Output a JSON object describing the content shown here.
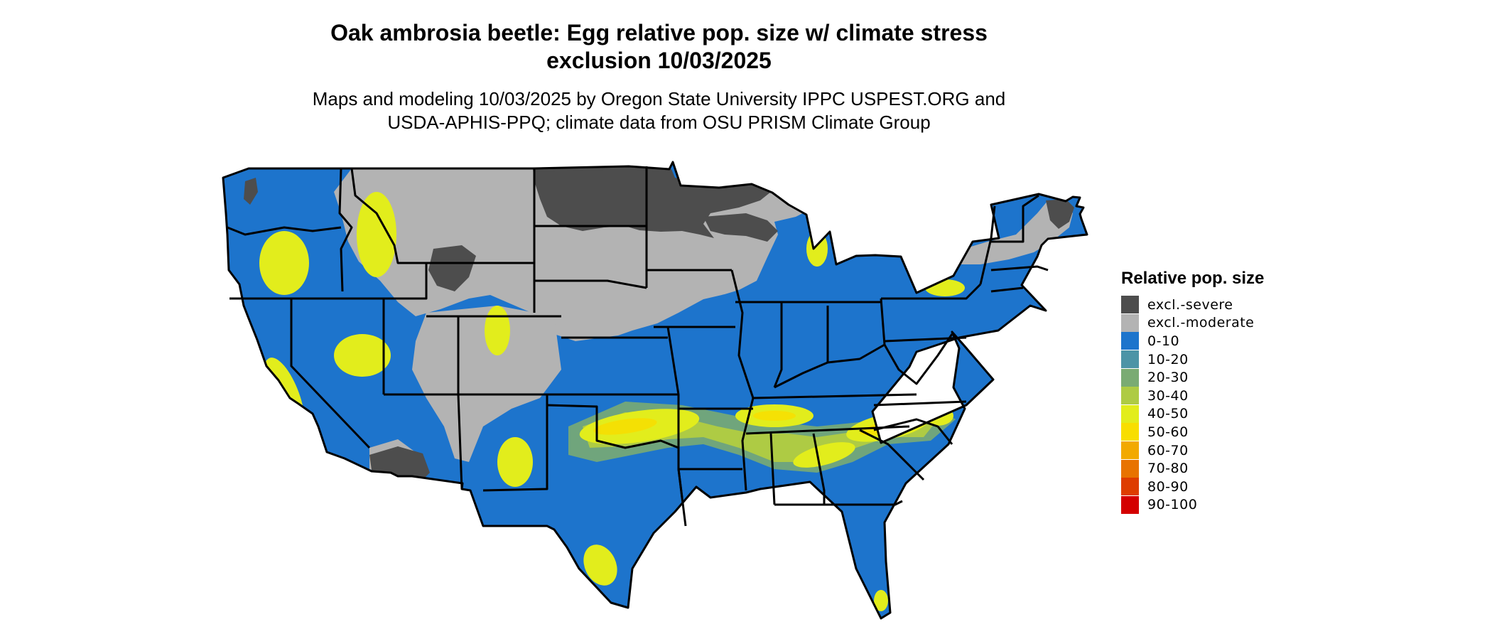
{
  "title": {
    "line1": "Oak ambrosia beetle: Egg relative pop. size w/ climate stress",
    "line2": "exclusion 10/03/2025"
  },
  "subtitle": {
    "line1": "Maps and modeling 10/03/2025 by Oregon State University IPPC USPEST.ORG and",
    "line2": "USDA-APHIS-PPQ; climate data from OSU PRISM Climate Group"
  },
  "legend": {
    "title": "Relative pop. size",
    "items": [
      {
        "label": "excl.-severe",
        "color": "#4d4d4d"
      },
      {
        "label": "excl.-moderate",
        "color": "#b3b3b3"
      },
      {
        "label": "0-10",
        "color": "#1d74cc"
      },
      {
        "label": "10-20",
        "color": "#4c94a6"
      },
      {
        "label": "20-30",
        "color": "#7aab73"
      },
      {
        "label": "30-40",
        "color": "#aecb44"
      },
      {
        "label": "40-50",
        "color": "#e2ed1c"
      },
      {
        "label": "50-60",
        "color": "#f8de00"
      },
      {
        "label": "60-70",
        "color": "#f2a900"
      },
      {
        "label": "70-80",
        "color": "#e87300"
      },
      {
        "label": "80-90",
        "color": "#de3d00"
      },
      {
        "label": "90-100",
        "color": "#d40000"
      }
    ]
  },
  "map": {
    "region": "Contiguous United States",
    "border_color": "#000000",
    "base_color": "#1d74cc"
  }
}
